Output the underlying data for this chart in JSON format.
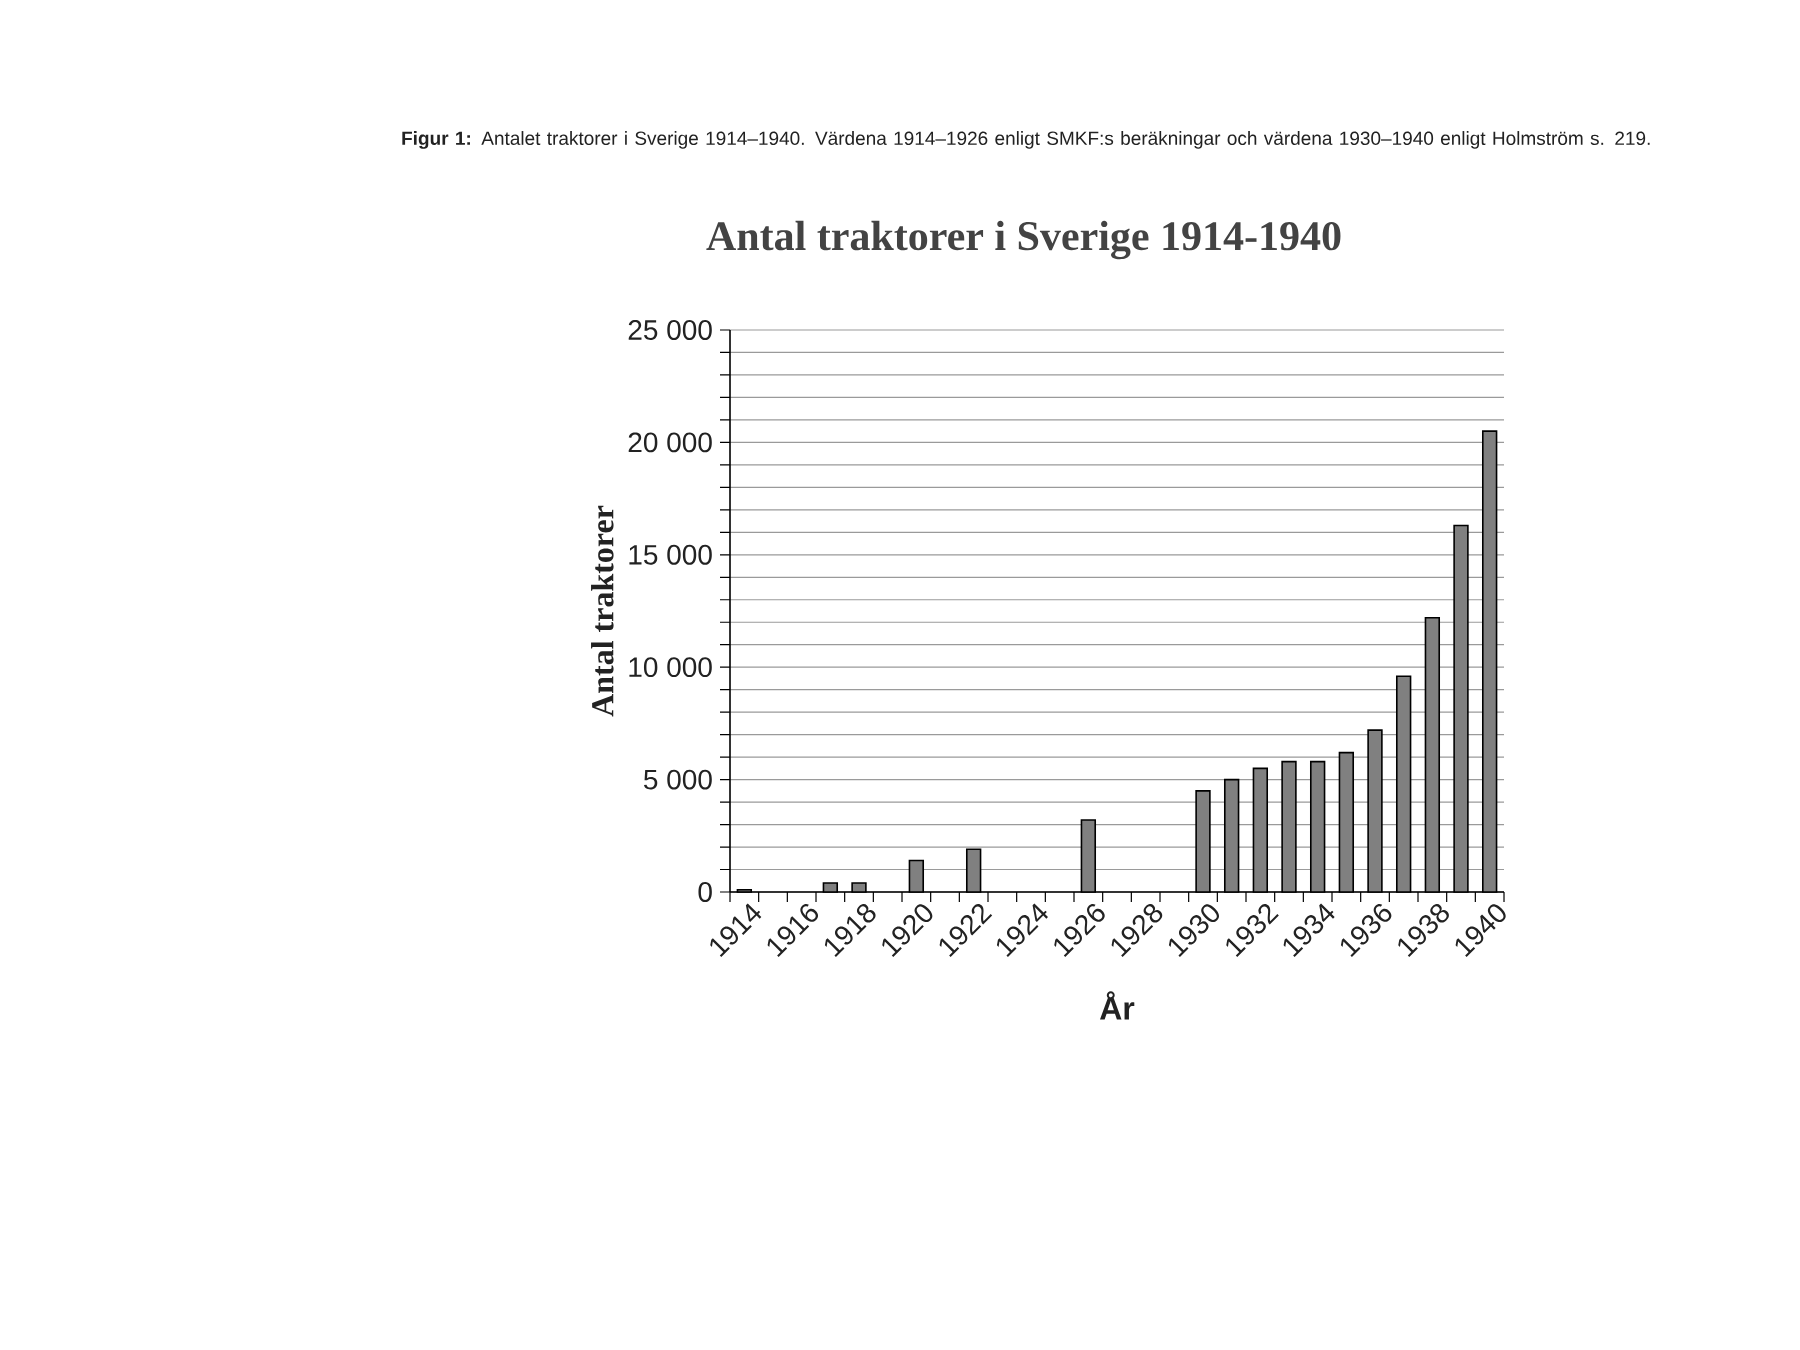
{
  "chart_data": {
    "type": "bar",
    "title": "Antal traktorer i Sverige 1914-1940",
    "xlabel": "År",
    "ylabel": "Antal traktorer",
    "annotations": [
      "**Figur 1:** Antalet traktorer i Sverige 1914–1940. Värdena 1914–1926 enligt SMKF:s beräkningar och värdena 1930–1940 enligt Holmström s. 219."
    ],
    "categories": [
      "1914",
      null,
      "1916",
      null,
      "1918",
      null,
      "1920",
      null,
      "1922",
      null,
      "1924",
      null,
      "1926",
      null,
      "1928",
      null,
      "1930",
      null,
      "1932",
      null,
      "1934",
      null,
      "1936",
      null,
      "1938",
      null,
      "1940"
    ],
    "values": [
      100,
      null,
      null,
      400,
      400,
      null,
      1400,
      null,
      1900,
      null,
      null,
      null,
      3200,
      null,
      null,
      null,
      4500,
      5000,
      5500,
      5800,
      5800,
      6200,
      7200,
      9600,
      12200,
      16300,
      20500
    ],
    "color": "#808080",
    "ylim": [
      0,
      25000
    ],
    "yticks": [
      0,
      {
        "value": 1000,
        "label": null
      },
      {
        "value": 2000,
        "label": null
      },
      {
        "value": 3000,
        "label": null
      },
      {
        "value": 4000,
        "label": null
      },
      {
        "value": 5000,
        "label": "5 000"
      },
      {
        "value": 6000,
        "label": null
      },
      {
        "value": 7000,
        "label": null
      },
      {
        "value": 8000,
        "label": null
      },
      {
        "value": 9000,
        "label": null
      },
      {
        "value": 10000,
        "label": "10 000"
      },
      {
        "value": 11000,
        "label": null
      },
      {
        "value": 12000,
        "label": null
      },
      {
        "value": 13000,
        "label": null
      },
      {
        "value": 14000,
        "label": null
      },
      {
        "value": 15000,
        "label": "15 000"
      },
      {
        "value": 16000,
        "label": null
      },
      {
        "value": 17000,
        "label": null
      },
      {
        "value": 18000,
        "label": null
      },
      {
        "value": 19000,
        "label": null
      },
      {
        "value": 20000,
        "label": "20 000"
      },
      {
        "value": 21000,
        "label": null
      },
      {
        "value": 22000,
        "label": null
      },
      {
        "value": 23000,
        "label": null
      },
      {
        "value": 24000,
        "label": null
      },
      {
        "value": 25000,
        "label": "25 000"
      }
    ],
    "grid": "y"
  }
}
